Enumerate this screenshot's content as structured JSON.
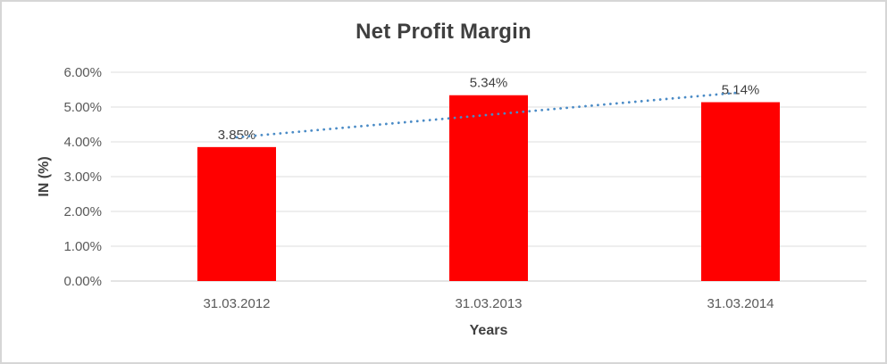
{
  "chart_data": {
    "type": "bar",
    "title": "Net Profit Margin",
    "xlabel": "Years",
    "ylabel": "IN (%)",
    "categories": [
      "31.03.2012",
      "31.03.2013",
      "31.03.2014"
    ],
    "values": [
      3.85,
      5.34,
      5.14
    ],
    "data_labels": [
      "3.85%",
      "5.34%",
      "5.14%"
    ],
    "yticks": [
      0,
      1,
      2,
      3,
      4,
      5,
      6
    ],
    "ytick_labels": [
      "0.00%",
      "1.00%",
      "2.00%",
      "3.00%",
      "4.00%",
      "5.00%",
      "6.00%"
    ],
    "ylim": [
      0,
      6
    ],
    "grid": true,
    "legend": false,
    "bar_color": "#ff0000",
    "gridline_color": "#dcdcdc",
    "axis_line_color": "#c9c9c9",
    "trendline": {
      "type": "linear",
      "style": "dotted",
      "color": "#4a8bc6"
    }
  }
}
